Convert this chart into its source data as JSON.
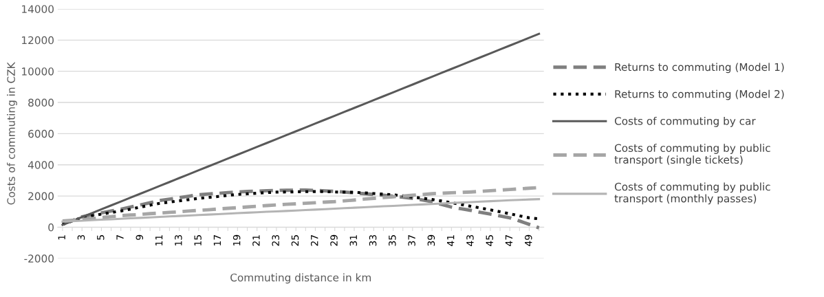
{
  "chart_data": {
    "type": "line",
    "xlabel": "Commuting distance in km",
    "ylabel": "Costs of commuting in CZK",
    "categories": [
      "1",
      null,
      "3",
      null,
      "5",
      null,
      "7",
      null,
      "9",
      null,
      "11",
      null,
      "13",
      null,
      "15",
      null,
      "17",
      null,
      "19",
      null,
      "21",
      null,
      "23",
      null,
      "25",
      null,
      "27",
      null,
      "29",
      null,
      "31",
      null,
      "33",
      null,
      "35",
      null,
      "37",
      null,
      "39",
      null,
      "41",
      null,
      "43",
      null,
      "45",
      null,
      "47",
      null,
      "49",
      null
    ],
    "ylim": [
      -2000,
      14000
    ],
    "yticks": [
      -2000,
      0,
      2000,
      4000,
      6000,
      8000,
      10000,
      12000,
      14000
    ],
    "grid": "y",
    "legend": "right",
    "marker": "none",
    "series": [
      {
        "name": "Returns to commuting (Model 1)",
        "color": "#7f7f7f",
        "line_style": "dashed",
        "values": [
          200,
          430,
          670,
          800,
          920,
          1040,
          1150,
          1290,
          1430,
          1570,
          1710,
          1800,
          1900,
          1990,
          2080,
          2130,
          2170,
          2220,
          2260,
          2290,
          2310,
          2340,
          2360,
          2370,
          2380,
          2380,
          2360,
          2330,
          2300,
          2250,
          2200,
          2150,
          2100,
          2050,
          1990,
          1920,
          1850,
          1750,
          1640,
          1460,
          1290,
          1180,
          1080,
          950,
          840,
          720,
          600,
          400,
          180,
          -40
        ]
      },
      {
        "name": "Returns to commuting (Model 2)",
        "color": "#000000",
        "line_style": "dotted",
        "values": [
          180,
          400,
          620,
          730,
          840,
          940,
          1040,
          1160,
          1290,
          1410,
          1530,
          1610,
          1690,
          1770,
          1850,
          1910,
          1970,
          2040,
          2100,
          2140,
          2180,
          2220,
          2250,
          2260,
          2270,
          2280,
          2290,
          2280,
          2260,
          2250,
          2240,
          2200,
          2160,
          2120,
          2080,
          2010,
          1930,
          1860,
          1780,
          1680,
          1570,
          1460,
          1340,
          1230,
          1110,
          990,
          860,
          730,
          600,
          540
        ]
      },
      {
        "name": "Costs of commuting by car",
        "color": "#595959",
        "line_style": "solid",
        "values": [
          150,
          400,
          650,
          900,
          1150,
          1400,
          1650,
          1900,
          2150,
          2400,
          2650,
          2900,
          3150,
          3400,
          3650,
          3900,
          4150,
          4400,
          4650,
          4900,
          5150,
          5400,
          5650,
          5900,
          6150,
          6400,
          6650,
          6900,
          7150,
          7400,
          7650,
          7900,
          8150,
          8400,
          8650,
          8900,
          9150,
          9400,
          9650,
          9900,
          10150,
          10400,
          10650,
          10900,
          11150,
          11400,
          11650,
          11900,
          12150,
          12400
        ]
      },
      {
        "name": "Costs of commuting by public transport (single tickets)",
        "color": "#a6a6a6",
        "line_style": "dashed",
        "values": [
          400,
          440,
          490,
          550,
          620,
          680,
          740,
          780,
          820,
          870,
          910,
          950,
          990,
          1040,
          1080,
          1120,
          1170,
          1210,
          1250,
          1300,
          1340,
          1390,
          1430,
          1470,
          1500,
          1540,
          1570,
          1610,
          1640,
          1690,
          1740,
          1800,
          1850,
          1900,
          1950,
          2000,
          2050,
          2100,
          2150,
          2180,
          2210,
          2230,
          2260,
          2300,
          2340,
          2380,
          2420,
          2460,
          2500,
          2540
        ]
      },
      {
        "name": "Costs of commuting by public transport (monthly passes)",
        "color": "#b4b4b4",
        "line_style": "solid",
        "values": [
          360,
          390,
          420,
          450,
          480,
          510,
          540,
          570,
          600,
          630,
          660,
          690,
          720,
          750,
          780,
          810,
          840,
          870,
          900,
          930,
          960,
          990,
          1010,
          1040,
          1070,
          1100,
          1130,
          1160,
          1190,
          1220,
          1250,
          1280,
          1310,
          1340,
          1370,
          1400,
          1430,
          1460,
          1490,
          1520,
          1550,
          1580,
          1610,
          1640,
          1670,
          1700,
          1730,
          1750,
          1780,
          1800
        ]
      }
    ]
  }
}
